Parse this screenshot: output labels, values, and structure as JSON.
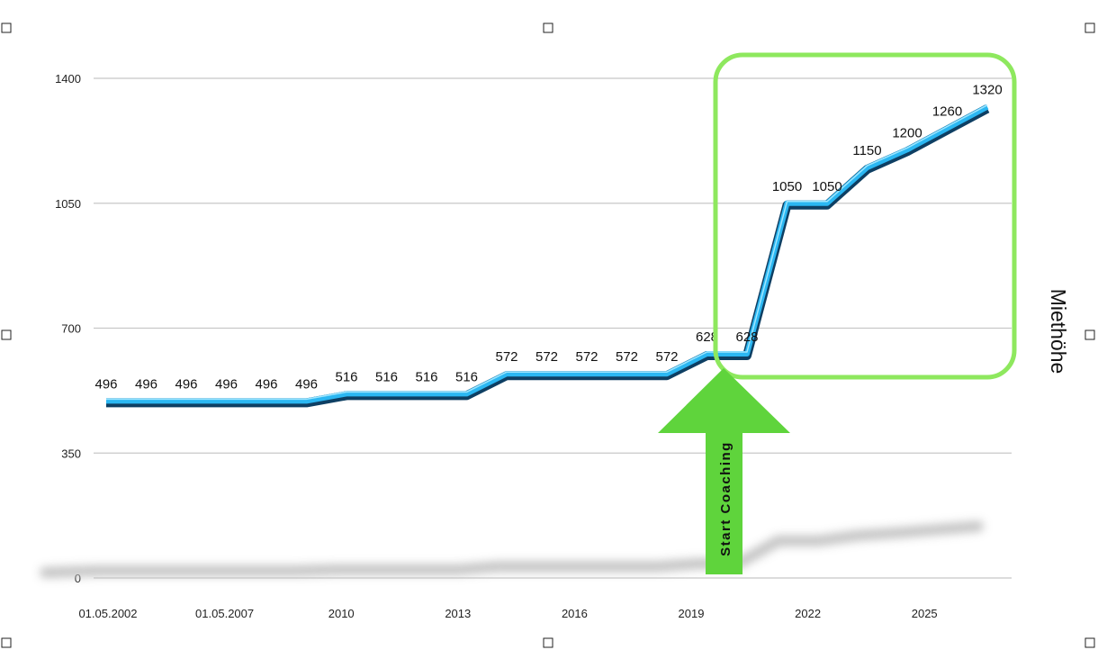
{
  "chart_data": {
    "type": "line",
    "ylabel": "Miethöhe",
    "ylim": [
      0,
      1400
    ],
    "yticks": [
      "0",
      "350",
      "700",
      "1050",
      "1400"
    ],
    "xticks": [
      "01.05.2002",
      "01.05.2007",
      "2010",
      "2013",
      "2016",
      "2019",
      "2022",
      "2025"
    ],
    "grid": true,
    "series": [
      {
        "values": [
          496,
          496,
          496,
          496,
          496,
          496,
          516,
          516,
          516,
          516,
          572,
          572,
          572,
          572,
          572,
          628,
          628,
          1050,
          1050,
          1150,
          1200,
          1260,
          1320
        ],
        "labels": [
          "496",
          "496",
          "496",
          "496",
          "496",
          "496",
          "516",
          "516",
          "516",
          "516",
          "572",
          "572",
          "572",
          "572",
          "572",
          "628",
          "628",
          "1050",
          "1050",
          "1150",
          "1200",
          "1260",
          "1320"
        ]
      }
    ],
    "annotations": [
      {
        "type": "arrow",
        "text": "Start Coaching",
        "direction": "up",
        "color": "#5fd43c"
      },
      {
        "type": "highlight-box",
        "color": "#8ee85e"
      }
    ]
  },
  "colors": {
    "line_main": "#2bb7f2",
    "line_dark": "#0e3f63",
    "grid": "#c8c8c8",
    "arrow": "#5fd43c",
    "highlight": "#8ee85e",
    "shadow": "#bdbdbd"
  }
}
